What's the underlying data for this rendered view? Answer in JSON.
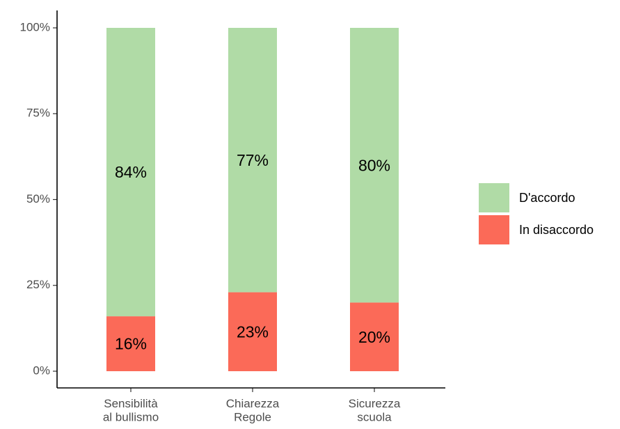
{
  "chart_data": {
    "type": "stacked_bar",
    "categories": [
      "Sensibilità\nal bullismo",
      "Chiarezza\nRegole",
      "Sicurezza\nscuola"
    ],
    "series": [
      {
        "name": "D'accordo",
        "color": "#b0dba6",
        "values": [
          84,
          77,
          80
        ],
        "value_labels": [
          "84%",
          "77%",
          "80%"
        ]
      },
      {
        "name": "In disaccordo",
        "color": "#fb6a58",
        "values": [
          16,
          23,
          20
        ],
        "value_labels": [
          "16%",
          "23%",
          "20%"
        ]
      }
    ],
    "ylim": [
      0,
      100
    ],
    "yticks": [
      {
        "value": 0,
        "label": "0%"
      },
      {
        "value": 25,
        "label": "25%"
      },
      {
        "value": 50,
        "label": "50%"
      },
      {
        "value": 75,
        "label": "75%"
      },
      {
        "value": 100,
        "label": "100%"
      }
    ],
    "legend": "right"
  }
}
